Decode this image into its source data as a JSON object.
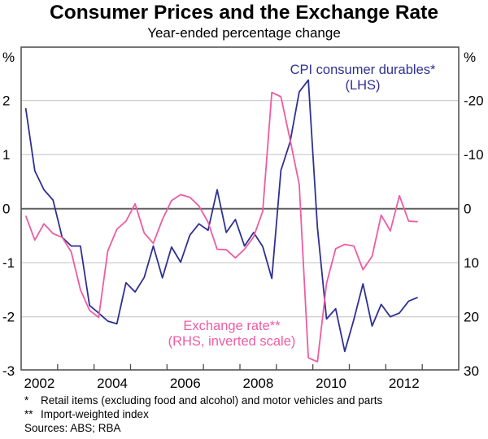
{
  "chart_data": {
    "type": "line",
    "title": "Consumer Prices and the Exchange Rate",
    "subtitle": "Year-ended percentage change",
    "xlabel": "",
    "ylabel_left": "%",
    "ylabel_right": "%",
    "xlim": [
      2002,
      2014
    ],
    "x_ticks": [
      2002,
      2003,
      2004,
      2005,
      2006,
      2007,
      2008,
      2009,
      2010,
      2011,
      2012,
      2013,
      2014
    ],
    "x_tick_labels": [
      "2002",
      "2004",
      "2006",
      "2008",
      "2010",
      "2012"
    ],
    "ylim_left": [
      -3,
      2.5
    ],
    "y_ticks_left": [
      -3,
      -2,
      -1,
      0,
      1,
      2
    ],
    "ylim_right": [
      30,
      -25
    ],
    "y_ticks_right": [
      30,
      20,
      10,
      0,
      -10,
      -20
    ],
    "right_axis_inverted": true,
    "grid": true,
    "x": [
      2002.125,
      2002.375,
      2002.625,
      2002.875,
      2003.125,
      2003.375,
      2003.625,
      2003.875,
      2004.125,
      2004.375,
      2004.625,
      2004.875,
      2005.125,
      2005.375,
      2005.625,
      2005.875,
      2006.125,
      2006.375,
      2006.625,
      2006.875,
      2007.125,
      2007.375,
      2007.625,
      2007.875,
      2008.125,
      2008.375,
      2008.625,
      2008.875,
      2009.125,
      2009.375,
      2009.625,
      2009.875,
      2010.125,
      2010.375,
      2010.625,
      2010.875,
      2011.125,
      2011.375,
      2011.625,
      2011.875,
      2012.125,
      2012.375,
      2012.625,
      2012.875
    ],
    "series": [
      {
        "name": "CPI consumer durables*",
        "axis": "left",
        "color": "#2e3192",
        "label_line1": "CPI consumer durables*",
        "label_line2": "(LHS)",
        "values": [
          1.86,
          0.7,
          0.35,
          0.16,
          -0.53,
          -0.69,
          -0.69,
          -1.79,
          -1.93,
          -2.08,
          -2.13,
          -1.37,
          -1.54,
          -1.27,
          -0.69,
          -1.28,
          -0.71,
          -0.99,
          -0.49,
          -0.28,
          -0.4,
          0.35,
          -0.44,
          -0.2,
          -0.69,
          -0.44,
          -0.7,
          -1.29,
          0.71,
          1.23,
          2.16,
          2.38,
          -0.35,
          -2.04,
          -1.85,
          -2.64,
          -2.05,
          -1.39,
          -2.17,
          -1.77,
          -2.0,
          -1.93,
          -1.71,
          -1.64
        ]
      },
      {
        "name": "Exchange rate**",
        "axis": "right",
        "color": "#ee5ca2",
        "label_line1": "Exchange rate**",
        "label_line2": "(RHS, inverted scale)",
        "values": [
          1.3,
          5.8,
          2.8,
          4.6,
          5.3,
          8.0,
          15.0,
          18.8,
          20.1,
          7.8,
          3.8,
          2.3,
          -0.9,
          4.5,
          6.4,
          2.0,
          -1.5,
          -2.6,
          -2.1,
          -0.5,
          2.5,
          7.5,
          7.6,
          9.1,
          7.5,
          5.2,
          0.5,
          -21.5,
          -20.7,
          -12.8,
          -4.5,
          27.6,
          28.3,
          13.8,
          7.4,
          6.6,
          6.9,
          11.3,
          8.8,
          1.2,
          4.1,
          -2.4,
          2.3,
          2.4
        ]
      }
    ]
  },
  "notes": [
    {
      "mark": "*",
      "text": "Retail items (excluding food and alcohol) and motor vehicles and parts"
    },
    {
      "mark": "**",
      "text": "Import-weighted index"
    }
  ],
  "sources": "Sources: ABS; RBA"
}
